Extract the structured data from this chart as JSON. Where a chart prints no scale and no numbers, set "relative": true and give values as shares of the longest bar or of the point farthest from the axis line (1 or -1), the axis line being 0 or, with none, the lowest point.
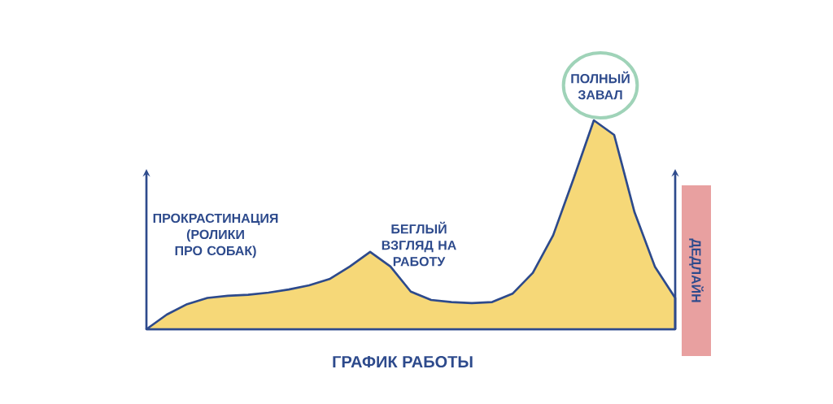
{
  "chart_data": {
    "type": "area",
    "relative": true,
    "xlabel": "ГРАФИК РАБОТЫ",
    "categories": [
      null,
      null,
      null,
      null,
      null,
      null,
      null,
      null,
      null,
      null,
      null,
      null,
      null,
      null,
      null,
      null,
      null,
      null,
      null,
      null,
      null,
      null,
      null,
      null,
      null,
      null,
      null
    ],
    "values": [
      0,
      0.07,
      0.12,
      0.15,
      0.16,
      0.165,
      0.175,
      0.19,
      0.21,
      0.24,
      0.3,
      0.37,
      0.3,
      0.18,
      0.14,
      0.13,
      0.125,
      0.13,
      0.17,
      0.27,
      0.45,
      0.72,
      1,
      0.93,
      0.56,
      0.3,
      0.15
    ],
    "color": "#f6d878",
    "annotations": [
      "ПРОКРАСТИНАЦИЯ (РОЛИКИ ПРО СОБАК)",
      "БЕГЛЫЙ ВЗГЛЯД НА РАБОТУ",
      "ПОЛНЫЙ ЗАВАЛ",
      "ДЕДЛАЙН"
    ]
  }
}
